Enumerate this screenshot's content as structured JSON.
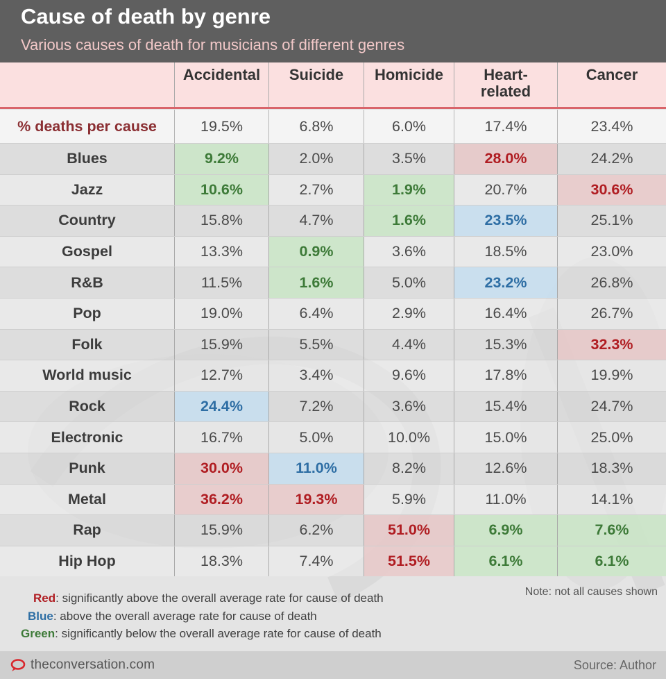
{
  "title": "Cause of death by genre",
  "subtitle": "Various causes of death for musicians of different genres",
  "chart_data": {
    "type": "table",
    "columns": [
      "Accidental",
      "Suicide",
      "Homicide",
      "Heart-related",
      "Cancer"
    ],
    "column_header_lines": [
      [
        "Accidental"
      ],
      [
        "Suicide"
      ],
      [
        "Homicide"
      ],
      [
        "Heart-",
        "related"
      ],
      [
        "Cancer"
      ]
    ],
    "average_row": {
      "label": "% deaths per cause",
      "values": [
        "19.5%",
        "6.8%",
        "6.0%",
        "17.4%",
        "23.4%"
      ]
    },
    "rows": [
      {
        "genre": "Blues",
        "values": [
          "9.2%",
          "2.0%",
          "3.5%",
          "28.0%",
          "24.2%"
        ],
        "highlights": [
          "green",
          "",
          "",
          "red",
          ""
        ]
      },
      {
        "genre": "Jazz",
        "values": [
          "10.6%",
          "2.7%",
          "1.9%",
          "20.7%",
          "30.6%"
        ],
        "highlights": [
          "green",
          "",
          "green",
          "",
          "red"
        ]
      },
      {
        "genre": "Country",
        "values": [
          "15.8%",
          "4.7%",
          "1.6%",
          "23.5%",
          "25.1%"
        ],
        "highlights": [
          "",
          "",
          "green",
          "blue",
          ""
        ]
      },
      {
        "genre": "Gospel",
        "values": [
          "13.3%",
          "0.9%",
          "3.6%",
          "18.5%",
          "23.0%"
        ],
        "highlights": [
          "",
          "green",
          "",
          "",
          ""
        ]
      },
      {
        "genre": "R&B",
        "values": [
          "11.5%",
          "1.6%",
          "5.0%",
          "23.2%",
          "26.8%"
        ],
        "highlights": [
          "",
          "green",
          "",
          "blue",
          ""
        ]
      },
      {
        "genre": "Pop",
        "values": [
          "19.0%",
          "6.4%",
          "2.9%",
          "16.4%",
          "26.7%"
        ],
        "highlights": [
          "",
          "",
          "",
          "",
          ""
        ]
      },
      {
        "genre": "Folk",
        "values": [
          "15.9%",
          "5.5%",
          "4.4%",
          "15.3%",
          "32.3%"
        ],
        "highlights": [
          "",
          "",
          "",
          "",
          "red"
        ]
      },
      {
        "genre": "World music",
        "values": [
          "12.7%",
          "3.4%",
          "9.6%",
          "17.8%",
          "19.9%"
        ],
        "highlights": [
          "",
          "",
          "",
          "",
          ""
        ]
      },
      {
        "genre": "Rock",
        "values": [
          "24.4%",
          "7.2%",
          "3.6%",
          "15.4%",
          "24.7%"
        ],
        "highlights": [
          "blue",
          "",
          "",
          "",
          ""
        ]
      },
      {
        "genre": "Electronic",
        "values": [
          "16.7%",
          "5.0%",
          "10.0%",
          "15.0%",
          "25.0%"
        ],
        "highlights": [
          "",
          "",
          "",
          "",
          ""
        ]
      },
      {
        "genre": "Punk",
        "values": [
          "30.0%",
          "11.0%",
          "8.2%",
          "12.6%",
          "18.3%"
        ],
        "highlights": [
          "red",
          "blue",
          "",
          "",
          ""
        ]
      },
      {
        "genre": "Metal",
        "values": [
          "36.2%",
          "19.3%",
          "5.9%",
          "11.0%",
          "14.1%"
        ],
        "highlights": [
          "red",
          "red",
          "",
          "",
          ""
        ]
      },
      {
        "genre": "Rap",
        "values": [
          "15.9%",
          "6.2%",
          "51.0%",
          "6.9%",
          "7.6%"
        ],
        "highlights": [
          "",
          "",
          "red",
          "green",
          "green"
        ]
      },
      {
        "genre": "Hip Hop",
        "values": [
          "18.3%",
          "7.4%",
          "51.5%",
          "6.1%",
          "6.1%"
        ],
        "highlights": [
          "",
          "",
          "red",
          "green",
          "green"
        ]
      }
    ]
  },
  "legend": {
    "red_word": "Red",
    "red_text": ": significantly above the overall average rate for cause of death",
    "blue_word": "Blue",
    "blue_text": ": above the overall average rate for cause of death",
    "green_word": "Green",
    "green_text": ": significantly below the overall average rate for cause of death",
    "note": "Note: not all causes shown"
  },
  "footer": {
    "site": "theconversation.com",
    "source": "Source: Author"
  },
  "colors": {
    "red": "#b01d22",
    "blue": "#2e6ea4",
    "green": "#3d7a38",
    "header_bg": "#5f5f5f",
    "rule": "#d9646a"
  }
}
